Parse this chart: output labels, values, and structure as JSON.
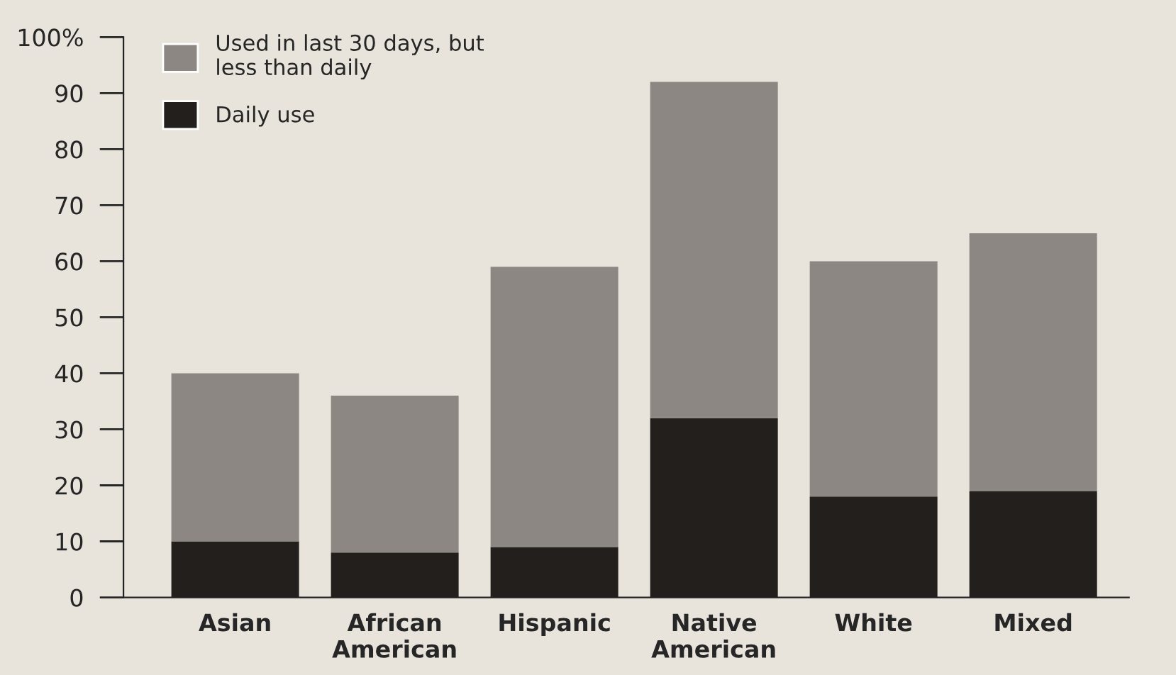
{
  "chart_data": {
    "type": "bar",
    "stacked": true,
    "categories": [
      "Asian",
      "African\nAmerican",
      "Hispanic",
      "Native\nAmerican",
      "White",
      "Mixed"
    ],
    "series": [
      {
        "name": "Daily use",
        "color": "#231f1c",
        "values": [
          10,
          8,
          9,
          32,
          18,
          19
        ]
      },
      {
        "name": "Used in last 30 days, but\nless than daily",
        "color": "#8c8782",
        "values": [
          30,
          28,
          50,
          60,
          42,
          46
        ]
      }
    ],
    "ylim": [
      0,
      100
    ],
    "yticks": [
      0,
      10,
      20,
      30,
      40,
      50,
      60,
      70,
      80,
      90,
      {
        "value": 100,
        "label": "100%"
      }
    ],
    "grid": false,
    "legend": "top left"
  }
}
